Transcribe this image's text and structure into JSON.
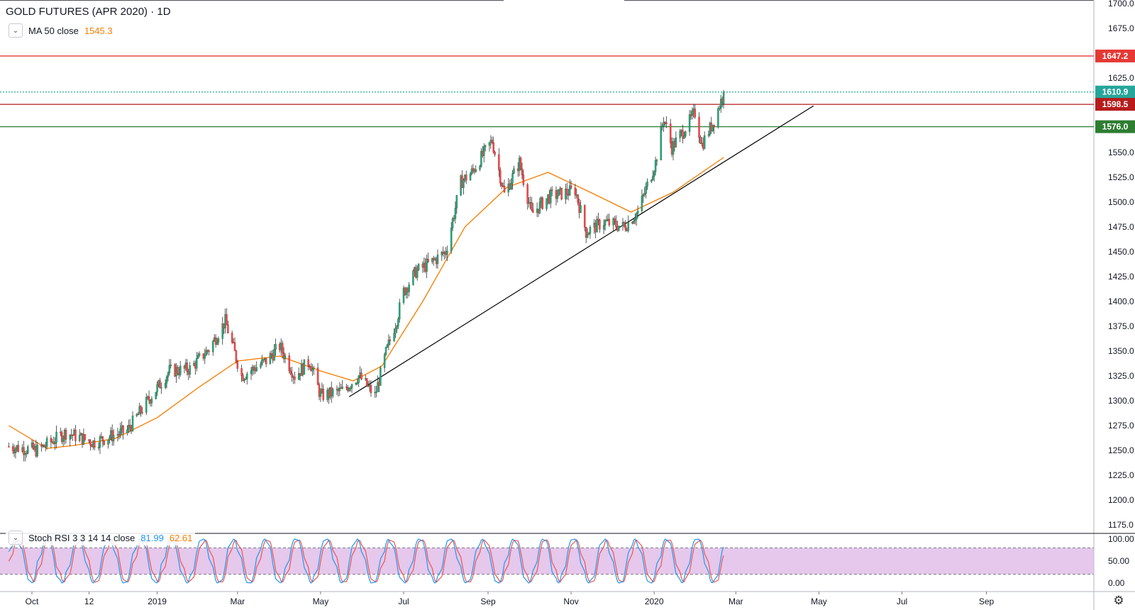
{
  "header": {
    "title": "GOLD FUTURES (APR 2020) · 1D",
    "ma_label": "MA 50 close",
    "ma_value": "1545.3",
    "stoch_label": "Stoch RSI 3 3 14 14 close",
    "stoch_k": "81.99",
    "stoch_d": "62.61"
  },
  "colors": {
    "bull": "#26a69a",
    "bear": "#ef5350",
    "ma": "#f57c00",
    "trend": "#000000",
    "line_1647": "#e53935",
    "line_1598": "#b71c1c",
    "line_1576": "#2e7d32",
    "last_price": "#26a69a",
    "stoch_k": "#2196f3",
    "stoch_d": "#ef5350",
    "stoch_band": "#e1bee7"
  },
  "chart_data": {
    "type": "candlestick",
    "price_axis": {
      "ylim": [
        1175,
        1700
      ],
      "ticks": [
        "1700.0",
        "1675.0",
        "1650.0",
        "1625.0",
        "1600.0",
        "1575.0",
        "1550.0",
        "1525.0",
        "1500.0",
        "1475.0",
        "1450.0",
        "1425.0",
        "1400.0",
        "1375.0",
        "1350.0",
        "1325.0",
        "1300.0",
        "1275.0",
        "1250.0",
        "1225.0",
        "1200.0",
        "1175.0"
      ]
    },
    "time_axis": {
      "ticks": [
        {
          "label": "Oct",
          "date": "2018-10-01"
        },
        {
          "label": "12",
          "date": "2018-11-12"
        },
        {
          "label": "2019",
          "date": "2019-01-01"
        },
        {
          "label": "Mar",
          "date": "2019-03-01"
        },
        {
          "label": "May",
          "date": "2019-05-01"
        },
        {
          "label": "Jul",
          "date": "2019-07-01"
        },
        {
          "label": "Sep",
          "date": "2019-09-01"
        },
        {
          "label": "Nov",
          "date": "2019-11-01"
        },
        {
          "label": "2020",
          "date": "2020-01-01"
        },
        {
          "label": "Mar",
          "date": "2020-03-01"
        },
        {
          "label": "May",
          "date": "2020-05-01"
        },
        {
          "label": "Jul",
          "date": "2020-07-01"
        },
        {
          "label": "Sep",
          "date": "2020-09-01"
        }
      ]
    },
    "price_path": [
      {
        "date": "2018-09-14",
        "price": 1254
      },
      {
        "date": "2018-10-05",
        "price": 1250
      },
      {
        "date": "2018-10-26",
        "price": 1268
      },
      {
        "date": "2018-11-15",
        "price": 1258
      },
      {
        "date": "2018-12-10",
        "price": 1270
      },
      {
        "date": "2018-12-21",
        "price": 1292
      },
      {
        "date": "2019-01-10",
        "price": 1330
      },
      {
        "date": "2019-01-25",
        "price": 1332
      },
      {
        "date": "2019-02-08",
        "price": 1352
      },
      {
        "date": "2019-02-20",
        "price": 1380
      },
      {
        "date": "2019-03-04",
        "price": 1325
      },
      {
        "date": "2019-03-22",
        "price": 1340
      },
      {
        "date": "2019-04-01",
        "price": 1355
      },
      {
        "date": "2019-04-12",
        "price": 1325
      },
      {
        "date": "2019-04-23",
        "price": 1340
      },
      {
        "date": "2019-05-01",
        "price": 1305
      },
      {
        "date": "2019-05-17",
        "price": 1310
      },
      {
        "date": "2019-05-29",
        "price": 1325
      },
      {
        "date": "2019-06-10",
        "price": 1305
      },
      {
        "date": "2019-06-18",
        "price": 1348
      },
      {
        "date": "2019-06-26",
        "price": 1382
      },
      {
        "date": "2019-07-01",
        "price": 1410
      },
      {
        "date": "2019-07-10",
        "price": 1430
      },
      {
        "date": "2019-07-22",
        "price": 1440
      },
      {
        "date": "2019-08-01",
        "price": 1450
      },
      {
        "date": "2019-08-12",
        "price": 1520
      },
      {
        "date": "2019-08-20",
        "price": 1530
      },
      {
        "date": "2019-09-04",
        "price": 1562
      },
      {
        "date": "2019-09-13",
        "price": 1508
      },
      {
        "date": "2019-09-24",
        "price": 1540
      },
      {
        "date": "2019-10-03",
        "price": 1488
      },
      {
        "date": "2019-10-15",
        "price": 1505
      },
      {
        "date": "2019-11-04",
        "price": 1512
      },
      {
        "date": "2019-11-12",
        "price": 1470
      },
      {
        "date": "2019-11-25",
        "price": 1480
      },
      {
        "date": "2019-12-10",
        "price": 1475
      },
      {
        "date": "2019-12-20",
        "price": 1490
      },
      {
        "date": "2020-01-02",
        "price": 1540
      },
      {
        "date": "2020-01-08",
        "price": 1585
      },
      {
        "date": "2020-01-14",
        "price": 1555
      },
      {
        "date": "2020-01-24",
        "price": 1575
      },
      {
        "date": "2020-01-31",
        "price": 1590
      },
      {
        "date": "2020-02-05",
        "price": 1558
      },
      {
        "date": "2020-02-14",
        "price": 1582
      },
      {
        "date": "2020-02-21",
        "price": 1610
      }
    ],
    "ma50": [
      {
        "date": "2018-09-14",
        "value": 1275
      },
      {
        "date": "2018-10-12",
        "value": 1252
      },
      {
        "date": "2018-11-01",
        "value": 1255
      },
      {
        "date": "2018-12-01",
        "value": 1262
      },
      {
        "date": "2019-01-01",
        "value": 1283
      },
      {
        "date": "2019-02-01",
        "value": 1314
      },
      {
        "date": "2019-03-01",
        "value": 1340
      },
      {
        "date": "2019-04-01",
        "value": 1345
      },
      {
        "date": "2019-05-01",
        "value": 1330
      },
      {
        "date": "2019-05-25",
        "value": 1320
      },
      {
        "date": "2019-06-15",
        "value": 1335
      },
      {
        "date": "2019-07-15",
        "value": 1400
      },
      {
        "date": "2019-08-15",
        "value": 1475
      },
      {
        "date": "2019-09-15",
        "value": 1515
      },
      {
        "date": "2019-10-15",
        "value": 1530
      },
      {
        "date": "2019-11-15",
        "value": 1510
      },
      {
        "date": "2019-12-15",
        "value": 1490
      },
      {
        "date": "2020-01-15",
        "value": 1510
      },
      {
        "date": "2020-02-21",
        "value": 1545
      }
    ],
    "trendline": [
      {
        "date": "2019-05-22",
        "price": 1304
      },
      {
        "date": "2020-04-27",
        "price": 1597
      }
    ],
    "levels": [
      {
        "price": 1647.2,
        "label": "1647.2",
        "style": "solid",
        "color_key": "line_1647"
      },
      {
        "price": 1610.9,
        "label": "1610.9",
        "style": "dotted",
        "color_key": "last_price"
      },
      {
        "price": 1598.5,
        "label": "1598.5",
        "style": "solid",
        "color_key": "line_1598"
      },
      {
        "price": 1576.0,
        "label": "1576.0",
        "style": "solid",
        "color_key": "line_1576"
      }
    ],
    "stoch_rsi": {
      "ylim": [
        0,
        100
      ],
      "ticks": [
        "100.00",
        "50.00",
        "0.00"
      ],
      "bands": [
        80,
        20
      ],
      "k_last": 81.99,
      "d_last": 62.61
    }
  }
}
